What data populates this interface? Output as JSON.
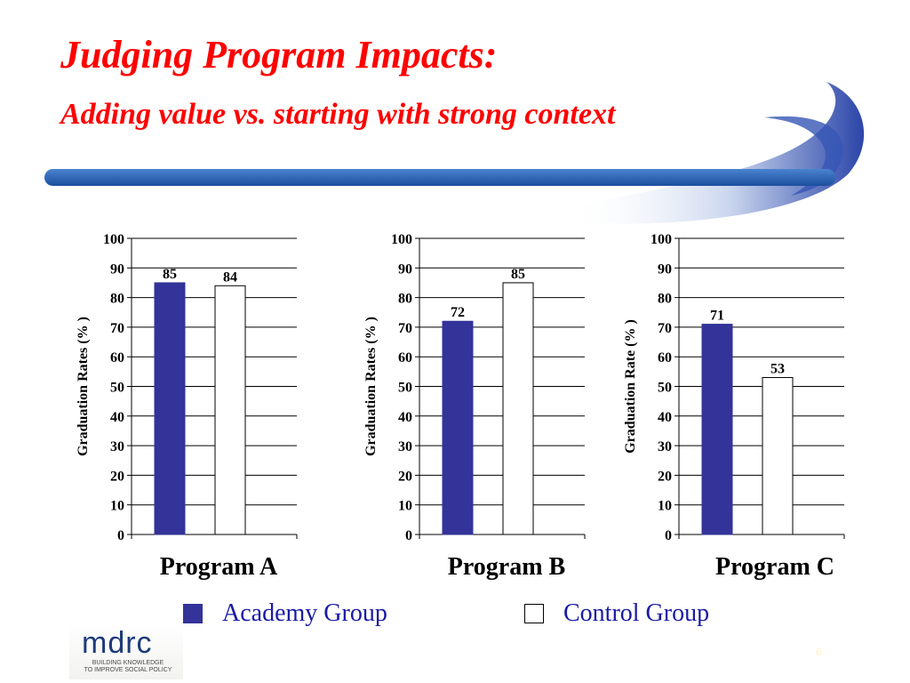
{
  "slide": {
    "title": "Judging Program Impacts:",
    "subtitle": "Adding value vs. starting with strong context",
    "page_number": "6"
  },
  "colors": {
    "title": "#ff0000",
    "academy": "#333399",
    "control": "#ffffff",
    "legend_text": "#1a1aa6",
    "swoosh": "#1e56a8"
  },
  "legend": {
    "items": [
      {
        "label": "Academy Group",
        "color": "#333399"
      },
      {
        "label": "Control Group",
        "color": "#ffffff"
      }
    ]
  },
  "logo": {
    "word": "mdrc",
    "tagline": [
      "BUILDING KNOWLEDGE",
      "TO IMPROVE SOCIAL POLICY"
    ]
  },
  "chart_data": [
    {
      "type": "bar",
      "title": "Program A",
      "ylabel": "Graduation Rates (%  )",
      "ylim": [
        0,
        100
      ],
      "yticks": [
        0,
        10,
        20,
        30,
        40,
        50,
        60,
        70,
        80,
        90,
        100
      ],
      "series": [
        {
          "name": "Academy Group",
          "value": 85
        },
        {
          "name": "Control Group",
          "value": 84
        }
      ],
      "grid": true
    },
    {
      "type": "bar",
      "title": "Program B",
      "ylabel": "Graduation Rates (%  )",
      "ylim": [
        0,
        100
      ],
      "yticks": [
        0,
        10,
        20,
        30,
        40,
        50,
        60,
        70,
        80,
        90,
        100
      ],
      "series": [
        {
          "name": "Academy Group",
          "value": 72
        },
        {
          "name": "Control Group",
          "value": 85
        }
      ],
      "grid": true
    },
    {
      "type": "bar",
      "title": "Program C",
      "ylabel": "Graduation Rate (%  )",
      "ylim": [
        0,
        100
      ],
      "yticks": [
        0,
        10,
        20,
        30,
        40,
        50,
        60,
        70,
        80,
        90,
        100
      ],
      "series": [
        {
          "name": "Academy Group",
          "value": 71
        },
        {
          "name": "Control Group",
          "value": 53
        }
      ],
      "grid": true
    }
  ]
}
